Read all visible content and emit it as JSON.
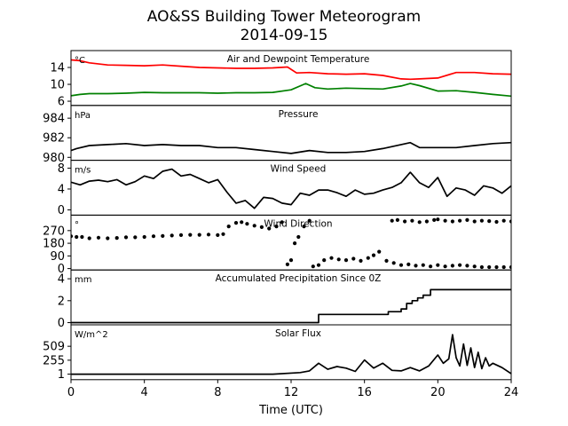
{
  "title_line1": "AO&SS Building Tower Meteorogram",
  "title_line2": "2014-09-15",
  "chart_data": {
    "type": "line",
    "xlabel": "Time (UTC)",
    "xlim": [
      0,
      24
    ],
    "xticks": [
      0,
      4,
      8,
      12,
      16,
      20,
      24
    ],
    "panels": [
      {
        "id": "temp",
        "title": "Air and Dewpoint Temperature",
        "unit": "°C",
        "ylim": [
          5,
          18
        ],
        "yticks": [
          6,
          10,
          14
        ],
        "series": [
          {
            "color": "#ff0000",
            "style": "line",
            "x": [
              0,
              0.5,
              1,
              2,
              3,
              4,
              5,
              6,
              7,
              8,
              9,
              10,
              11,
              11.8,
              12.3,
              13,
              14,
              15,
              16,
              17,
              18,
              18.5,
              19,
              20,
              21,
              22,
              23,
              24
            ],
            "y": [
              15.8,
              15.6,
              15.1,
              14.6,
              14.5,
              14.4,
              14.6,
              14.3,
              14.0,
              13.9,
              13.8,
              13.8,
              13.9,
              14.1,
              12.7,
              12.8,
              12.5,
              12.4,
              12.5,
              12.1,
              11.3,
              11.2,
              11.3,
              11.5,
              12.8,
              12.8,
              12.5,
              12.4
            ]
          },
          {
            "color": "#008000",
            "style": "line",
            "x": [
              0,
              0.5,
              1,
              2,
              3,
              4,
              5,
              6,
              7,
              8,
              9,
              10,
              11,
              12,
              12.8,
              13.3,
              14,
              15,
              16,
              17,
              18,
              18.5,
              19,
              20,
              21,
              22,
              23,
              24
            ],
            "y": [
              7.3,
              7.6,
              7.8,
              7.8,
              7.9,
              8.1,
              8.0,
              8.0,
              8.0,
              7.9,
              8.0,
              8.0,
              8.1,
              8.7,
              10.2,
              9.2,
              8.9,
              9.1,
              9.0,
              8.9,
              9.6,
              10.2,
              9.7,
              8.4,
              8.5,
              8.1,
              7.6,
              7.2
            ]
          }
        ]
      },
      {
        "id": "pressure",
        "title": "Pressure",
        "unit": "hPa",
        "ylim": [
          979.7,
          985.3
        ],
        "yticks": [
          980,
          982,
          984
        ],
        "series": [
          {
            "color": "#000000",
            "style": "line",
            "x": [
              0,
              0.3,
              1,
              2,
              3,
              4,
              5,
              6,
              7,
              8,
              9,
              10,
              11,
              12,
              13,
              14,
              15,
              16,
              17,
              18,
              18.5,
              19,
              20,
              21,
              22,
              23,
              24
            ],
            "y": [
              980.7,
              980.9,
              981.2,
              981.3,
              981.4,
              981.2,
              981.3,
              981.2,
              981.2,
              981.0,
              981.0,
              980.8,
              980.6,
              980.4,
              980.7,
              980.5,
              980.5,
              980.6,
              980.9,
              981.3,
              981.5,
              981.0,
              981.0,
              981.0,
              981.2,
              981.4,
              981.5
            ]
          }
        ]
      },
      {
        "id": "wind_speed",
        "title": "Wind Speed",
        "unit": "m/s",
        "ylim": [
          -1,
          9.5
        ],
        "yticks": [
          0,
          4,
          8
        ],
        "series": [
          {
            "color": "#000000",
            "style": "line",
            "x": [
              0,
              0.5,
              1,
              1.5,
              2,
              2.5,
              3,
              3.5,
              4,
              4.5,
              5,
              5.5,
              6,
              6.5,
              7,
              7.5,
              8,
              8.5,
              9,
              9.5,
              10,
              10.5,
              11,
              11.5,
              12,
              12.5,
              13,
              13.5,
              14,
              14.5,
              15,
              15.5,
              16,
              16.5,
              17,
              17.5,
              18,
              18.5,
              19,
              19.5,
              20,
              20.5,
              21,
              21.5,
              22,
              22.5,
              23,
              23.5,
              24
            ],
            "y": [
              5.3,
              4.8,
              5.5,
              5.7,
              5.4,
              5.8,
              4.8,
              5.4,
              6.5,
              6.0,
              7.4,
              7.8,
              6.5,
              6.8,
              6.0,
              5.2,
              5.8,
              3.4,
              1.3,
              1.8,
              0.3,
              2.4,
              2.2,
              1.3,
              1.0,
              3.2,
              2.8,
              3.8,
              3.8,
              3.3,
              2.6,
              3.8,
              3.0,
              3.2,
              3.8,
              4.3,
              5.2,
              7.2,
              5.2,
              4.3,
              6.2,
              2.6,
              4.2,
              3.8,
              2.8,
              4.6,
              4.2,
              3.2,
              4.6
            ]
          }
        ]
      },
      {
        "id": "wind_dir",
        "title": "Wind Direction",
        "unit": "°",
        "ylim": [
          -10,
          380
        ],
        "yticks": [
          0,
          90,
          180,
          270
        ],
        "series": [
          {
            "color": "#000000",
            "style": "dots",
            "x": [
              0,
              0.3,
              0.6,
              1,
              1.5,
              2,
              2.5,
              3,
              3.5,
              4,
              4.5,
              5,
              5.5,
              6,
              6.5,
              7,
              7.5,
              8,
              8.3,
              8.6,
              9,
              9.3,
              9.6,
              10,
              10.4,
              10.8,
              11.2,
              11.5,
              11.8,
              12,
              12.2,
              12.4,
              12.7,
              13,
              13.2,
              13.5,
              13.8,
              14.2,
              14.6,
              15,
              15.4,
              15.8,
              16.2,
              16.5,
              16.8,
              17.2,
              17.6,
              18,
              18.4,
              18.8,
              19.2,
              19.6,
              20,
              20.4,
              20.8,
              21.2,
              21.6,
              22,
              22.4,
              22.8,
              23.2,
              23.6,
              24
            ],
            "y": [
              230,
              225,
              225,
              215,
              220,
              215,
              218,
              222,
              222,
              225,
              230,
              232,
              235,
              238,
              240,
              240,
              242,
              238,
              245,
              300,
              325,
              330,
              318,
              305,
              295,
              285,
              300,
              330,
              30,
              60,
              180,
              225,
              300,
              340,
              15,
              25,
              60,
              75,
              65,
              60,
              70,
              55,
              75,
              95,
              120,
              55,
              40,
              25,
              30,
              20,
              25,
              15,
              25,
              15,
              20,
              25,
              20,
              15,
              10,
              10,
              10,
              10,
              10
            ]
          },
          {
            "color": "#000000",
            "style": "dots",
            "x": [
              17.5,
              17.8,
              18.2,
              18.6,
              19,
              19.4,
              19.8,
              20,
              20.4,
              20.8,
              21.2,
              21.6,
              22,
              22.4,
              22.8,
              23.2,
              23.6,
              24
            ],
            "y": [
              340,
              345,
              335,
              340,
              330,
              335,
              345,
              350,
              340,
              335,
              340,
              345,
              335,
              340,
              338,
              332,
              340,
              335
            ]
          }
        ]
      },
      {
        "id": "precip",
        "title": "Accumulated Precipitation Since 0Z",
        "unit": "mm",
        "ylim": [
          -0.2,
          4.8
        ],
        "yticks": [
          0,
          2,
          4
        ],
        "series": [
          {
            "color": "#000000",
            "style": "step",
            "x": [
              0,
              13.3,
              13.5,
              16.8,
              17.3,
              18.0,
              18.3,
              18.6,
              18.9,
              19.2,
              19.6,
              24
            ],
            "y": [
              0,
              0,
              0.75,
              0.75,
              1.0,
              1.25,
              1.75,
              2.0,
              2.25,
              2.5,
              3.0,
              3.0
            ]
          }
        ]
      },
      {
        "id": "solar",
        "title": "Solar Flux",
        "unit": "W/m^2",
        "ylim": [
          -100,
          900
        ],
        "yticks": [
          1,
          255,
          509
        ],
        "series": [
          {
            "color": "#000000",
            "style": "line",
            "x": [
              0,
              6,
              11,
              12.5,
              13,
              13.5,
              14,
              14.5,
              15,
              15.5,
              16,
              16.5,
              17,
              17.5,
              18,
              18.5,
              19,
              19.5,
              20,
              20.3,
              20.6,
              20.8,
              21.0,
              21.2,
              21.4,
              21.6,
              21.8,
              22.0,
              22.2,
              22.4,
              22.6,
              22.8,
              23,
              23.5,
              24
            ],
            "y": [
              1,
              1,
              1,
              30,
              60,
              200,
              90,
              140,
              110,
              50,
              260,
              110,
              200,
              70,
              60,
              120,
              60,
              150,
              350,
              200,
              280,
              720,
              300,
              150,
              550,
              160,
              480,
              120,
              400,
              100,
              300,
              150,
              200,
              120,
              10
            ]
          }
        ]
      }
    ]
  }
}
